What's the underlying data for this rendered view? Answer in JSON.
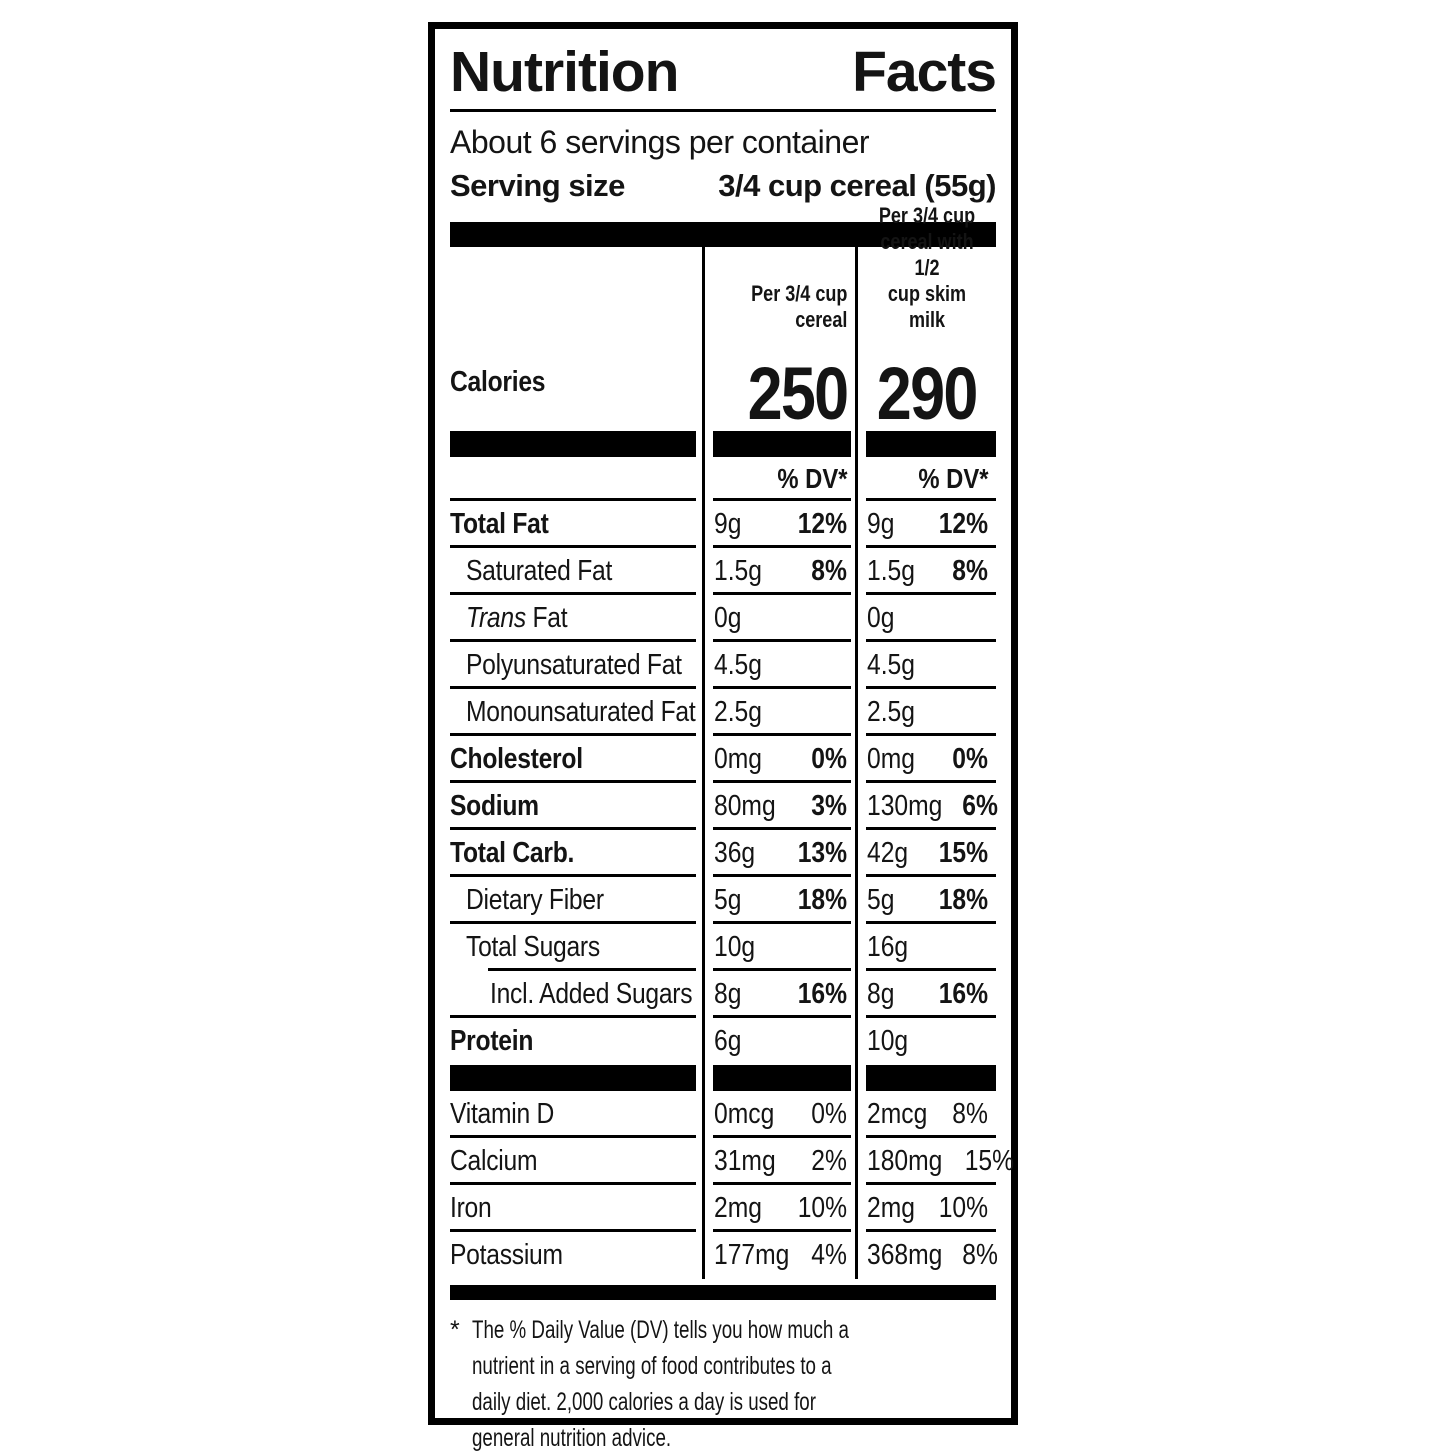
{
  "header": {
    "title": "Nutrition Facts",
    "servings_per_container": "About 6 servings per container",
    "serving_size_label": "Serving size",
    "serving_size_value": "3/4 cup cereal (55g)"
  },
  "columns": {
    "col1_header": "Per 3/4 cup\ncereal",
    "col2_header": "Per 3/4 cup\ncereal with 1/2\ncup skim milk",
    "dv_header": "% DV*"
  },
  "calories": {
    "label": "Calories",
    "col1": "250",
    "col2": "290"
  },
  "nutrients": [
    {
      "label": "Total Fat",
      "col1_amount": "9g",
      "col1_dv": "12%",
      "col2_amount": "9g",
      "col2_dv": "12%"
    },
    {
      "label": "Saturated Fat",
      "col1_amount": "1.5g",
      "col1_dv": "8%",
      "col2_amount": "1.5g",
      "col2_dv": "8%"
    },
    {
      "label_italic": "Trans",
      "label": " Fat",
      "col1_amount": "0g",
      "col1_dv": "",
      "col2_amount": "0g",
      "col2_dv": ""
    },
    {
      "label": "Polyunsaturated Fat",
      "col1_amount": "4.5g",
      "col1_dv": "",
      "col2_amount": "4.5g",
      "col2_dv": ""
    },
    {
      "label": "Monounsaturated Fat",
      "col1_amount": "2.5g",
      "col1_dv": "",
      "col2_amount": "2.5g",
      "col2_dv": ""
    },
    {
      "label": "Cholesterol",
      "col1_amount": "0mg",
      "col1_dv": "0%",
      "col2_amount": "0mg",
      "col2_dv": "0%"
    },
    {
      "label": "Sodium",
      "col1_amount": "80mg",
      "col1_dv": "3%",
      "col2_amount": "130mg",
      "col2_dv": "6%"
    },
    {
      "label": "Total Carb.",
      "col1_amount": "36g",
      "col1_dv": "13%",
      "col2_amount": "42g",
      "col2_dv": "15%"
    },
    {
      "label": "Dietary Fiber",
      "col1_amount": "5g",
      "col1_dv": "18%",
      "col2_amount": "5g",
      "col2_dv": "18%"
    },
    {
      "label": "Total Sugars",
      "col1_amount": "10g",
      "col1_dv": "",
      "col2_amount": "16g",
      "col2_dv": ""
    },
    {
      "label": "Incl. Added Sugars",
      "col1_amount": "8g",
      "col1_dv": "16%",
      "col2_amount": "8g",
      "col2_dv": "16%"
    },
    {
      "label": "Protein",
      "col1_amount": "6g",
      "col1_dv": "",
      "col2_amount": "10g",
      "col2_dv": ""
    }
  ],
  "vitamins": [
    {
      "label": "Vitamin D",
      "col1_amount": "0mcg",
      "col1_dv": "0%",
      "col2_amount": "2mcg",
      "col2_dv": "8%"
    },
    {
      "label": "Calcium",
      "col1_amount": "31mg",
      "col1_dv": "2%",
      "col2_amount": "180mg",
      "col2_dv": "15%"
    },
    {
      "label": "Iron",
      "col1_amount": "2mg",
      "col1_dv": "10%",
      "col2_amount": "2mg",
      "col2_dv": "10%"
    },
    {
      "label": "Potassium",
      "col1_amount": "177mg",
      "col1_dv": "4%",
      "col2_amount": "368mg",
      "col2_dv": "8%"
    }
  ],
  "footnote": {
    "marker": "*",
    "text": "The % Daily Value (DV) tells you how much a nutrient in a serving of food contributes to a daily diet. 2,000 calories a day is used for general nutrition advice."
  },
  "colors": {
    "ink": "#141414",
    "bar": "#000000",
    "paper": "#ffffff"
  }
}
